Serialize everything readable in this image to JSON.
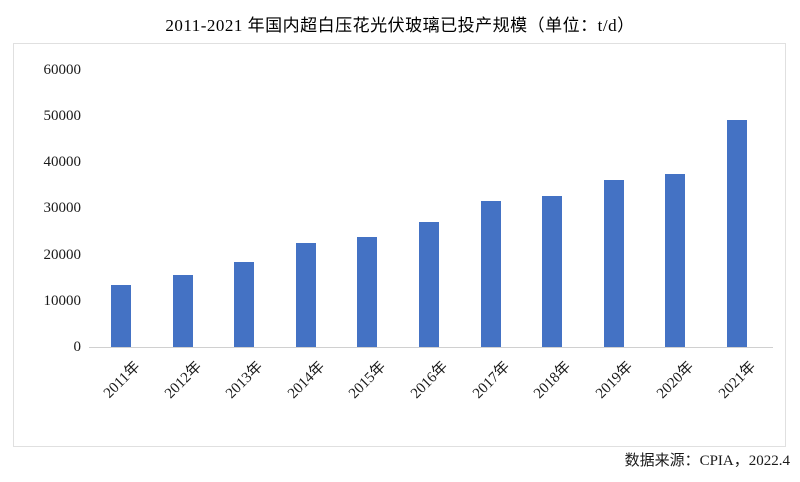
{
  "title": "2011-2021 年国内超白压花光伏玻璃已投产规模（单位：t/d）",
  "footer": {
    "source_text": "数据来源：CPIA，2022.4"
  },
  "colors": {
    "bar": "#4472C4",
    "chart_border": "#E0E0E0",
    "baseline": "#D0D0D0",
    "text": "#1A1A1A"
  },
  "chart_data": {
    "type": "bar",
    "title": "2011-2021 年国内超白压花光伏玻璃已投产规模（单位：t/d）",
    "unit": "t/d",
    "categories": [
      "2011年",
      "2012年",
      "2013年",
      "2014年",
      "2015年",
      "2016年",
      "2017年",
      "2018年",
      "2019年",
      "2020年",
      "2021年"
    ],
    "values": [
      13500,
      15500,
      18300,
      22400,
      23800,
      27100,
      31500,
      32600,
      36100,
      37300,
      49100
    ],
    "xlabel": "",
    "ylabel": "",
    "ylim": [
      0,
      60000
    ],
    "yticks": [
      0,
      10000,
      20000,
      30000,
      40000,
      50000,
      60000
    ],
    "grid": false,
    "legend_position": "none",
    "annotation": "数据来源：CPIA，2022.4"
  }
}
